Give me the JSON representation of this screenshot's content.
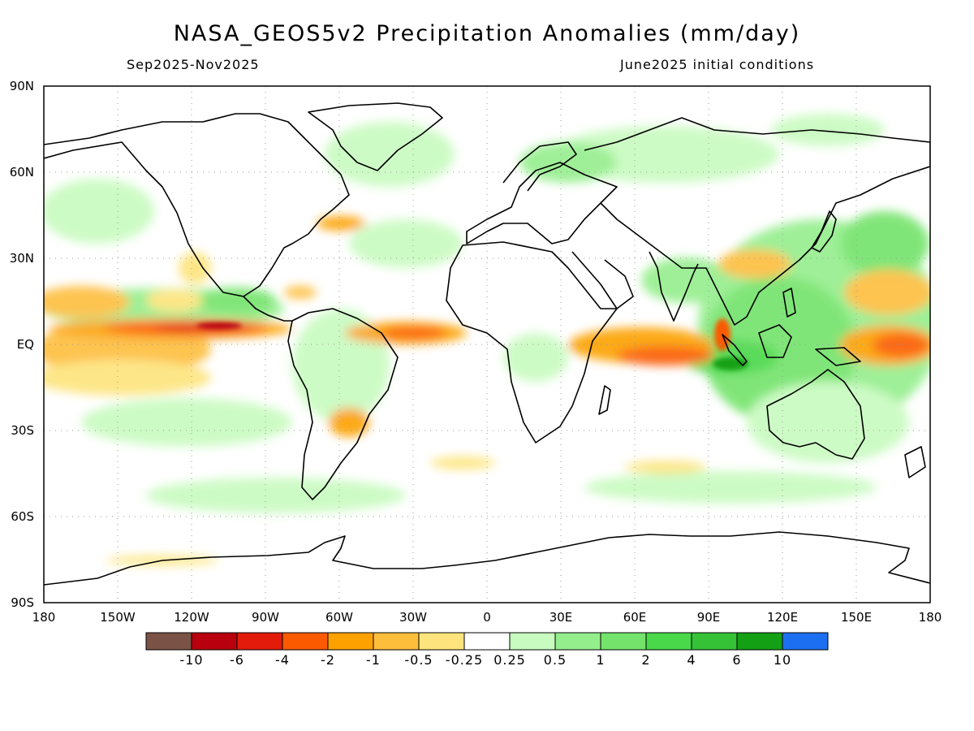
{
  "header": {
    "title": "NASA_GEOS5v2 Precipitation Anomalies (mm/day)",
    "period": "Sep2025-Nov2025",
    "init": "June2025 initial conditions"
  },
  "axes": {
    "lat_labels": [
      "90N",
      "60N",
      "30N",
      "EQ",
      "30S",
      "60S",
      "90S"
    ],
    "lon_labels": [
      "180",
      "150W",
      "120W",
      "90W",
      "60W",
      "30W",
      "0",
      "30E",
      "60E",
      "90E",
      "120E",
      "150E",
      "180"
    ]
  },
  "colorbar": {
    "colors": [
      "#7b5346",
      "#b8000e",
      "#e21b0b",
      "#fb5a00",
      "#fca100",
      "#fdbe3c",
      "#fde47c",
      "#ffffff",
      "#c8fbbf",
      "#94ee8c",
      "#73e36b",
      "#48d84a",
      "#35c237",
      "#13a015",
      "#1d6ff2"
    ],
    "labels": [
      "-10",
      "-6",
      "-4",
      "-2",
      "-1",
      "-0.5",
      "-0.25",
      "0.25",
      "0.5",
      "1",
      "2",
      "4",
      "6",
      "10"
    ]
  },
  "chart_data": {
    "type": "heatmap",
    "title": "NASA_GEOS5v2 Precipitation Anomalies (mm/day)",
    "xlim": [
      -180,
      180
    ],
    "ylim": [
      -90,
      90
    ],
    "grid": true,
    "units": "mm/day",
    "levels": [
      -10,
      -6,
      -4,
      -2,
      -1,
      -0.5,
      -0.25,
      0.25,
      0.5,
      1,
      2,
      4,
      6,
      10
    ],
    "regions": [
      {
        "lon": [
          -180,
          -60
        ],
        "lat": [
          3,
          10
        ],
        "value": -2
      },
      {
        "lon": [
          -130,
          -95
        ],
        "lat": [
          5,
          9
        ],
        "value": -6
      },
      {
        "lon": [
          -180,
          -100
        ],
        "lat": [
          -10,
          3
        ],
        "value": -1
      },
      {
        "lon": [
          -180,
          -130
        ],
        "lat": [
          10,
          20
        ],
        "value": -1
      },
      {
        "lon": [
          -60,
          -10
        ],
        "lat": [
          3,
          8
        ],
        "value": -2
      },
      {
        "lon": [
          40,
          100
        ],
        "lat": [
          -10,
          5
        ],
        "value": -2
      },
      {
        "lon": [
          145,
          180
        ],
        "lat": [
          -5,
          5
        ],
        "value": -2
      },
      {
        "lon": [
          150,
          180
        ],
        "lat": [
          10,
          20
        ],
        "value": -1
      },
      {
        "lon": [
          70,
          150
        ],
        "lat": [
          -15,
          35
        ],
        "value": 1
      },
      {
        "lon": [
          90,
          110
        ],
        "lat": [
          -8,
          -2
        ],
        "value": 4
      },
      {
        "lon": [
          -180,
          -60
        ],
        "lat": [
          10,
          20
        ],
        "value": 0.5
      },
      {
        "lon": [
          -150,
          -60
        ],
        "lat": [
          -40,
          -10
        ],
        "value": 0.5
      },
      {
        "lon": [
          -180,
          180
        ],
        "lat": [
          -60,
          -50
        ],
        "value": 0.5
      }
    ]
  }
}
